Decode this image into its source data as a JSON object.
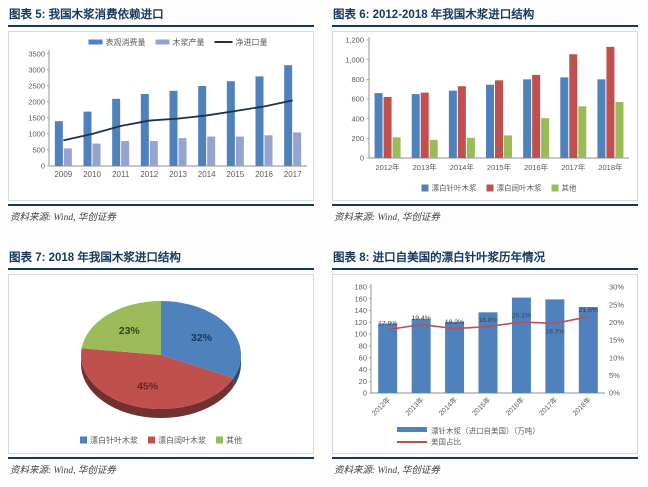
{
  "source_label": "资料来源: Wind, 华创证券",
  "panels": [
    {
      "title": "图表 5: 我国木浆消费依赖进口"
    },
    {
      "title": "图表 6: 2012-2018 年我国木浆进口结构"
    },
    {
      "title": "图表 7: 2018 年我国木浆进口结构"
    },
    {
      "title": "图表 8: 进口自美国的漂白针叶浆历年情况"
    }
  ],
  "colors": {
    "navy": "#17375E",
    "bar_blue": "#4F81BD",
    "bar_light_blue": "#95A4CE",
    "bar_red": "#C0504D",
    "bar_green": "#9BBB59",
    "axis_text": "#595959"
  },
  "chart_data": [
    {
      "type": "bar",
      "title": "我国木浆消费依赖进口",
      "categories": [
        "2009",
        "2010",
        "2011",
        "2012",
        "2013",
        "2014",
        "2015",
        "2016",
        "2017"
      ],
      "series": [
        {
          "name": "表观消费量",
          "kind": "bar",
          "color": "#4F81BD",
          "values": [
            1400,
            1700,
            2100,
            2250,
            2350,
            2500,
            2650,
            2800,
            3150
          ]
        },
        {
          "name": "木浆产量",
          "kind": "bar",
          "color": "#95A4CE",
          "values": [
            550,
            700,
            780,
            780,
            870,
            920,
            920,
            960,
            1050
          ]
        },
        {
          "name": "净进口量",
          "kind": "line",
          "color": "#1F3150",
          "values": [
            800,
            1000,
            1250,
            1420,
            1480,
            1580,
            1720,
            1860,
            2050
          ]
        }
      ],
      "ylim": [
        0,
        3500
      ],
      "yticks": [
        "0",
        "500",
        "1000",
        "1500",
        "2000",
        "2500",
        "3000",
        "3500"
      ],
      "legend_position": "top",
      "grid": false
    },
    {
      "type": "bar",
      "title": "2012-2018 年我国木浆进口结构",
      "categories": [
        "2012年",
        "2013年",
        "2014年",
        "2015年",
        "2016年",
        "2017年",
        "2018年"
      ],
      "series": [
        {
          "name": "漂白针叶木浆",
          "kind": "bar",
          "color": "#4F81BD",
          "values": [
            660,
            650,
            685,
            745,
            800,
            820,
            800
          ]
        },
        {
          "name": "漂白阔叶木浆",
          "kind": "bar",
          "color": "#C0504D",
          "values": [
            620,
            665,
            730,
            790,
            845,
            1055,
            1130
          ]
        },
        {
          "name": "其他",
          "kind": "bar",
          "color": "#9BBB59",
          "values": [
            210,
            185,
            205,
            230,
            405,
            525,
            570
          ]
        }
      ],
      "ylim": [
        0,
        1200
      ],
      "yticks": [
        "0",
        "200",
        "400",
        "600",
        "800",
        "1,000",
        "1,200"
      ],
      "legend_position": "bottom",
      "grid": false
    },
    {
      "type": "pie",
      "title": "2018 年我国木浆进口结构",
      "slices": [
        {
          "name": "漂白针叶木浆",
          "color": "#4F81BD",
          "value": 32,
          "label": "32%",
          "label_color": "#17375E"
        },
        {
          "name": "漂白阔叶木浆",
          "color": "#C0504D",
          "value": 45,
          "label": "45%",
          "label_color": "#632423"
        },
        {
          "name": "其他",
          "color": "#9BBB59",
          "value": 23,
          "label": "23%",
          "label_color": "#3A4117"
        }
      ],
      "legend_position": "bottom"
    },
    {
      "type": "bar",
      "title": "进口自美国的漂白针叶浆历年情况",
      "categories": [
        "2012年",
        "2013年",
        "2014年",
        "2015年",
        "2016年",
        "2017年",
        "2018年"
      ],
      "series": [
        {
          "name": "漂针木浆（进口自美国）（万吨）",
          "kind": "bar",
          "color": "#4F81BD",
          "axis": "left",
          "values": [
            118,
            126,
            121,
            137,
            162,
            159,
            146
          ]
        },
        {
          "name": "美国占比",
          "kind": "line",
          "color": "#C0504D",
          "axis": "right",
          "values": [
            17.9,
            19.4,
            18.2,
            18.8,
            20.1,
            19.7,
            21.6
          ],
          "labels": [
            "17.9%",
            "19.4%",
            "18.2%",
            "18.8%",
            "20.1%",
            "19.7%",
            "21.6%"
          ]
        }
      ],
      "ylim_left": [
        0,
        180
      ],
      "yticks_left": [
        "0",
        "20",
        "40",
        "60",
        "80",
        "100",
        "120",
        "140",
        "160",
        "180"
      ],
      "ylim_right": [
        0,
        30
      ],
      "yticks_right": [
        "0%",
        "5%",
        "10%",
        "15%",
        "20%",
        "25%",
        "30%"
      ],
      "legend_position": "bottom-left",
      "x_label_rotate": -45,
      "grid": false
    }
  ]
}
